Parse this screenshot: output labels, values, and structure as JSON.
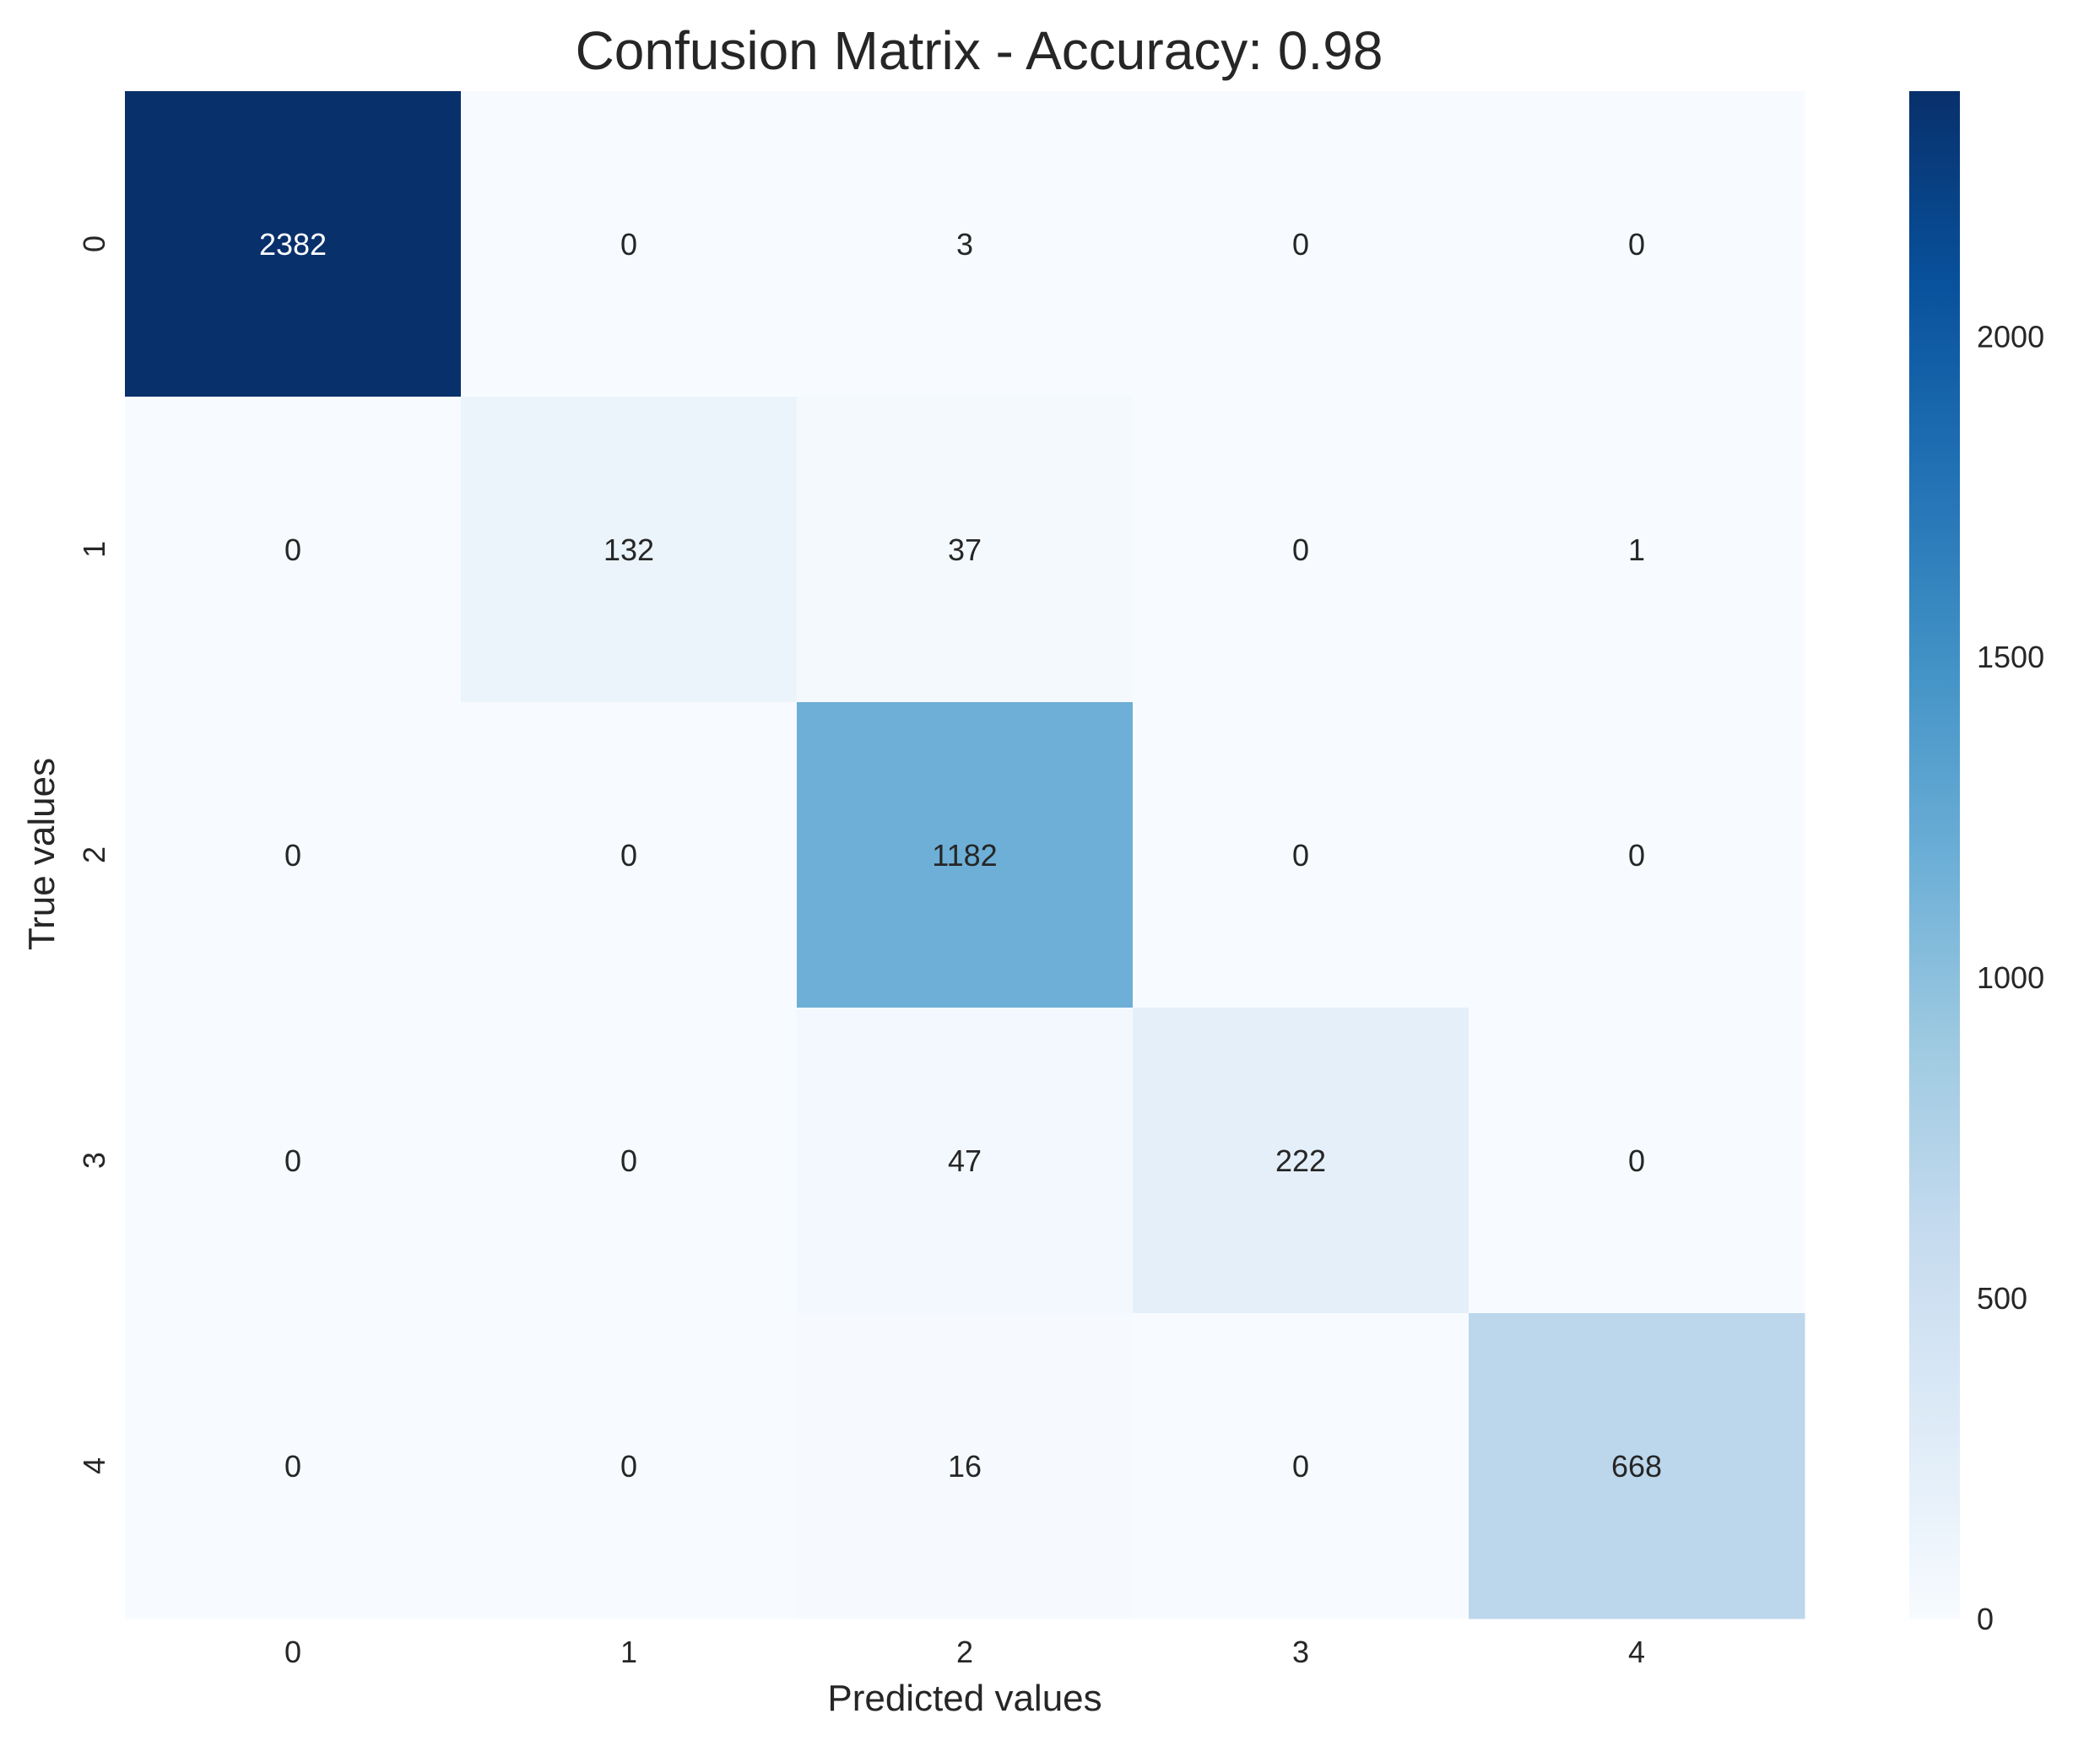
{
  "chart_data": {
    "type": "heatmap",
    "title": "Confusion Matrix - Accuracy: 0.98",
    "xlabel": "Predicted values",
    "ylabel": "True values",
    "x_categories": [
      "0",
      "1",
      "2",
      "3",
      "4"
    ],
    "y_categories": [
      "0",
      "1",
      "2",
      "3",
      "4"
    ],
    "matrix": [
      [
        2382,
        0,
        3,
        0,
        0
      ],
      [
        0,
        132,
        37,
        0,
        1
      ],
      [
        0,
        0,
        1182,
        0,
        0
      ],
      [
        0,
        0,
        47,
        222,
        0
      ],
      [
        0,
        0,
        16,
        0,
        668
      ]
    ],
    "colormap": "Blues",
    "colorbar": {
      "vmin": 0,
      "vmax": 2382,
      "ticks": [
        0,
        500,
        1000,
        1500,
        2000
      ],
      "tick_labels": [
        "0",
        "500",
        "1000",
        "1500",
        "2000"
      ]
    },
    "colors": {
      "low": "#f7fbff",
      "high": "#08306b",
      "text_dark": "#262626",
      "text_light": "#ffffff"
    },
    "grid": false
  }
}
